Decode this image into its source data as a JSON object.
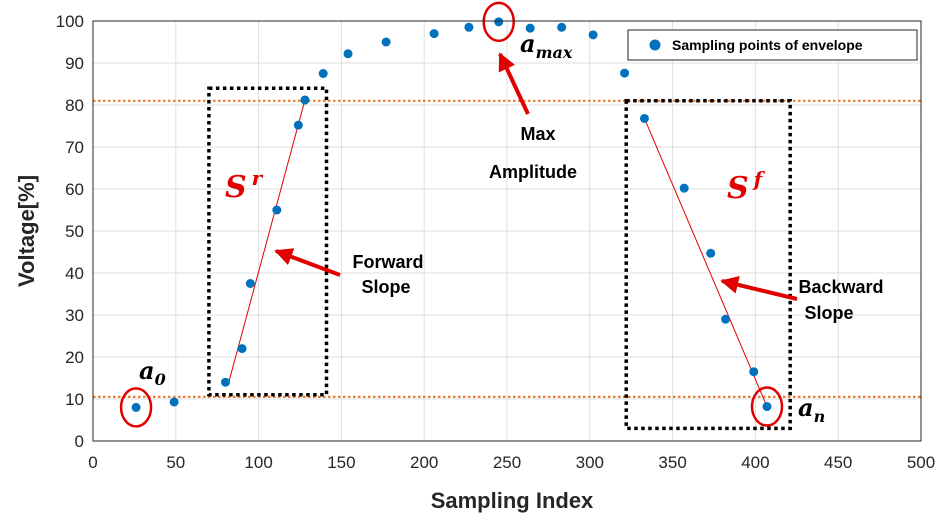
{
  "chart_data": {
    "type": "scatter",
    "xlabel": "Sampling Index",
    "ylabel": "Voltage[%]",
    "xlim": [
      0,
      500
    ],
    "ylim": [
      0,
      100
    ],
    "xticks": [
      0,
      50,
      100,
      150,
      200,
      250,
      300,
      350,
      400,
      450,
      500
    ],
    "yticks": [
      0,
      10,
      20,
      30,
      40,
      50,
      60,
      70,
      80,
      90,
      100
    ],
    "grid": true,
    "legend_position": "top-right",
    "series": [
      {
        "name": "Sampling points of envelope",
        "color": "#0072bd",
        "points": [
          [
            26,
            8
          ],
          [
            49,
            9.3
          ],
          [
            80,
            14
          ],
          [
            90,
            22
          ],
          [
            95,
            37.5
          ],
          [
            111,
            55
          ],
          [
            124,
            75.2
          ],
          [
            128,
            81.2
          ],
          [
            139,
            87.5
          ],
          [
            154,
            92.2
          ],
          [
            177,
            95
          ],
          [
            206,
            97
          ],
          [
            227,
            98.5
          ],
          [
            245,
            99.8
          ],
          [
            264,
            98.3
          ],
          [
            283,
            98.5
          ],
          [
            302,
            96.7
          ],
          [
            321,
            87.6
          ],
          [
            333,
            76.8
          ],
          [
            357,
            60.2
          ],
          [
            373,
            44.7
          ],
          [
            382,
            29
          ],
          [
            399,
            16.5
          ],
          [
            407,
            8.2
          ]
        ]
      }
    ],
    "threshold_lines": [
      {
        "y": 81,
        "color": "#ed7d31"
      },
      {
        "y": 10.5,
        "color": "#ed7d31"
      }
    ],
    "fit_lines": [
      {
        "x0": 82,
        "y0": 14,
        "x1": 128,
        "y1": 81.2,
        "color": "#e00000"
      },
      {
        "x0": 333,
        "y0": 76.8,
        "x1": 407,
        "y1": 8.2,
        "color": "#e00000"
      }
    ],
    "boxes": [
      {
        "x0": 70,
        "x1": 141,
        "y0": 11,
        "y1": 84
      },
      {
        "x0": 322,
        "x1": 421,
        "y0": 3,
        "y1": 81
      }
    ],
    "circles": [
      {
        "x": 26,
        "y": 8
      },
      {
        "x": 245,
        "y": 99.8
      },
      {
        "x": 407,
        "y": 8.2
      }
    ],
    "annotations": {
      "a0": {
        "base": "a",
        "sub": "0"
      },
      "amax": {
        "base": "a",
        "sub": "max"
      },
      "an": {
        "base": "a",
        "sub": "n"
      },
      "sr": {
        "base": "S",
        "sup": "r"
      },
      "sf": {
        "base": "S",
        "sup": "f"
      },
      "max_amplitude": [
        "Max",
        "Amplitude"
      ],
      "forward_slope": [
        "Forward",
        "Slope"
      ],
      "backward_slope": [
        "Backward",
        "Slope"
      ]
    }
  }
}
